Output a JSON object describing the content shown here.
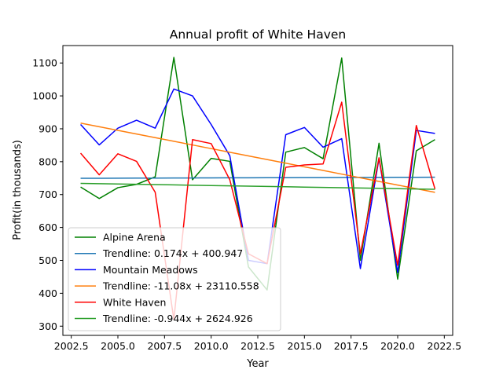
{
  "chart_data": {
    "type": "line",
    "title": "Annual profit of White Haven",
    "xlabel": "Year",
    "ylabel": "Profit(in thousands)",
    "xlim": [
      2002.05,
      2022.95
    ],
    "ylim": [
      272,
      1153
    ],
    "x_ticks": [
      2002.5,
      2005.0,
      2007.5,
      2010.0,
      2012.5,
      2015.0,
      2017.5,
      2020.0,
      2022.5
    ],
    "x_tick_labels": [
      "2002.5",
      "2005.0",
      "2007.5",
      "2010.0",
      "2012.5",
      "2015.0",
      "2017.5",
      "2020.0",
      "2022.5"
    ],
    "y_ticks": [
      300,
      400,
      500,
      600,
      700,
      800,
      900,
      1000,
      1100
    ],
    "y_tick_labels": [
      "300",
      "400",
      "500",
      "600",
      "700",
      "800",
      "900",
      "1000",
      "1100"
    ],
    "grid": false,
    "legend_position": "lower-left",
    "x": [
      2003,
      2004,
      2005,
      2006,
      2007,
      2008,
      2009,
      2010,
      2011,
      2012,
      2013,
      2014,
      2015,
      2016,
      2017,
      2018,
      2019,
      2020,
      2021,
      2022
    ],
    "series": [
      {
        "name": "Alpine Arena",
        "color": "#008000",
        "values": [
          723,
          688,
          721,
          731,
          754,
          1117,
          745,
          810,
          801,
          480,
          410,
          829,
          843,
          809,
          1115,
          500,
          856,
          443,
          833,
          867
        ]
      },
      {
        "name": "Trendline: 0.174x + 400.947",
        "color": "#1f77b4",
        "trend": {
          "slope": 0.174,
          "intercept": 400.947
        }
      },
      {
        "name": "Mountain Meadows",
        "color": "#0000ff",
        "values": [
          913,
          851,
          902,
          926,
          902,
          1021,
          1000,
          913,
          818,
          500,
          490,
          882,
          904,
          844,
          870,
          475,
          810,
          463,
          895,
          886
        ]
      },
      {
        "name": "Trendline: -11.08x + 23110.558",
        "color": "#ff7f0e",
        "trend": {
          "slope": -11.08,
          "intercept": 23110.558
        }
      },
      {
        "name": "White Haven",
        "color": "#ff0000",
        "values": [
          826,
          760,
          824,
          801,
          707,
          320,
          867,
          855,
          745,
          520,
          490,
          783,
          790,
          793,
          981,
          520,
          812,
          485,
          910,
          717
        ]
      },
      {
        "name": "Trendline: -0.944x + 2624.926",
        "color": "#2ca02c",
        "trend": {
          "slope": -0.944,
          "intercept": 2624.926
        }
      }
    ]
  }
}
